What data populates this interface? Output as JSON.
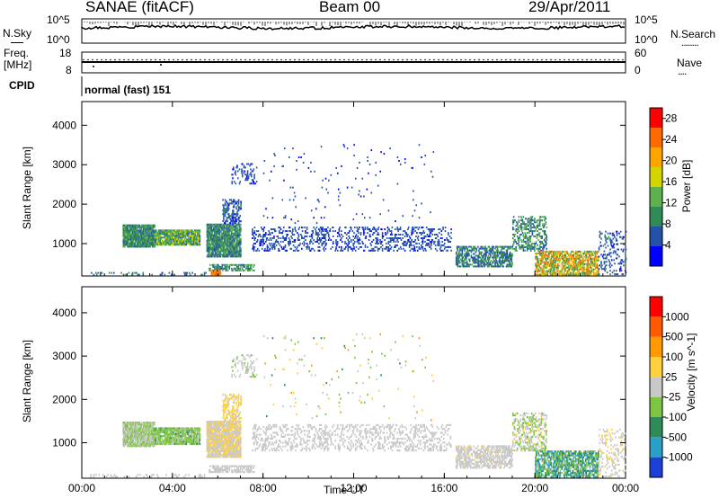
{
  "header": {
    "station": "SANAE (fitACF)",
    "beam": "Beam 00",
    "date": "29/Apr/2011"
  },
  "top_panels": {
    "nsky_label": "N.Sky",
    "nsearch_label": "N.Search",
    "nsearch_marker": "........",
    "freq_label_1": "Freq.",
    "freq_label_2": "[MHz]",
    "freq_ticks": [
      "18",
      "8"
    ],
    "nave_label": "Nave",
    "nave_marker": "....",
    "nave_ticks": [
      "60",
      "0"
    ],
    "noise_ticks_left": [
      "10^5",
      "10^0"
    ],
    "noise_ticks_right": [
      "10^5",
      "10^0"
    ],
    "cpid_label": "CPID",
    "cpid_text": "normal (fast) 151"
  },
  "colors": {
    "power_scale": [
      "#0000ff",
      "#2352a8",
      "#2e8b57",
      "#5fb04e",
      "#d4d400",
      "#ffa500",
      "#ff6a00",
      "#ff0000"
    ],
    "velocity_scale": [
      "#1c3fd6",
      "#2aa0c8",
      "#2e8b57",
      "#7dc542",
      "#c8c8c8",
      "#ffd040",
      "#ff9a00",
      "#ff5a00",
      "#ff0000"
    ]
  },
  "chart_data": [
    {
      "type": "heatmap",
      "panel": "power",
      "ylabel": "Slant Range [km]",
      "xlabel": "Time UT",
      "xlim_hours": [
        0,
        24
      ],
      "ylim_km": [
        180,
        4600
      ],
      "x_tick_labels": [
        "00:00",
        "04:00",
        "08:00",
        "12:00",
        "16:00",
        "20:00",
        "00:00"
      ],
      "y_tick_labels": [
        "1000",
        "2000",
        "3000",
        "4000"
      ],
      "colorbar": {
        "label": "Power [dB]",
        "ticks": [
          "4",
          "8",
          "12",
          "16",
          "20",
          "24",
          "28"
        ],
        "range": [
          0,
          30
        ]
      },
      "regions": [
        {
          "t": [
            1.8,
            3.2
          ],
          "r": [
            900,
            1450
          ],
          "density": 0.85,
          "val": [
            6,
            13
          ]
        },
        {
          "t": [
            3.2,
            5.2
          ],
          "r": [
            950,
            1350
          ],
          "density": 0.8,
          "val": [
            6,
            18
          ]
        },
        {
          "t": [
            5.5,
            7.0
          ],
          "r": [
            650,
            1500
          ],
          "density": 0.8,
          "val": [
            5,
            14
          ]
        },
        {
          "t": [
            6.2,
            7.0
          ],
          "r": [
            1500,
            2100
          ],
          "density": 0.4,
          "val": [
            3,
            8
          ]
        },
        {
          "t": [
            6.6,
            7.7
          ],
          "r": [
            2500,
            3000
          ],
          "density": 0.15,
          "val": [
            3,
            7
          ]
        },
        {
          "t": [
            5.6,
            7.6
          ],
          "r": [
            300,
            450
          ],
          "density": 0.55,
          "val": [
            6,
            14
          ]
        },
        {
          "t": [
            5.7,
            6.1
          ],
          "r": [
            190,
            300
          ],
          "density": 0.9,
          "val": [
            18,
            28
          ]
        },
        {
          "t": [
            0.3,
            5.5
          ],
          "r": [
            190,
            260
          ],
          "density": 0.18,
          "val": [
            4,
            10
          ]
        },
        {
          "t": [
            7.5,
            16.3
          ],
          "r": [
            800,
            1400
          ],
          "density": 0.22,
          "val": [
            3,
            7
          ]
        },
        {
          "t": [
            8.0,
            15.5
          ],
          "r": [
            1500,
            3500
          ],
          "density": 0.012,
          "val": [
            3,
            6
          ]
        },
        {
          "t": [
            16.5,
            19.0
          ],
          "r": [
            400,
            900
          ],
          "density": 0.5,
          "val": [
            4,
            12
          ]
        },
        {
          "t": [
            19.0,
            20.5
          ],
          "r": [
            800,
            1700
          ],
          "density": 0.35,
          "val": [
            5,
            14
          ]
        },
        {
          "t": [
            20.0,
            22.8
          ],
          "r": [
            190,
            800
          ],
          "density": 0.6,
          "val": [
            8,
            26
          ]
        },
        {
          "t": [
            22.8,
            24.0
          ],
          "r": [
            200,
            1300
          ],
          "density": 0.15,
          "val": [
            3,
            8
          ]
        }
      ]
    },
    {
      "type": "heatmap",
      "panel": "velocity",
      "ylabel": "Slant Range [km]",
      "xlabel": "Time UT",
      "xlim_hours": [
        0,
        24
      ],
      "ylim_km": [
        180,
        4600
      ],
      "x_tick_labels": [
        "00:00",
        "04:00",
        "08:00",
        "12:00",
        "16:00",
        "20:00",
        "00:00"
      ],
      "y_tick_labels": [
        "1000",
        "2000",
        "3000",
        "4000"
      ],
      "colorbar": {
        "label": "Velocity [m s^-1]",
        "ticks": [
          "1000",
          "500",
          "100",
          "25",
          "-25",
          "-100",
          "-500",
          "-1000"
        ],
        "range": [
          -1200,
          1200
        ]
      },
      "regions": [
        {
          "t": [
            1.8,
            3.2
          ],
          "r": [
            900,
            1450
          ],
          "density": 0.85,
          "val": [
            -300,
            50
          ]
        },
        {
          "t": [
            3.2,
            5.2
          ],
          "r": [
            950,
            1350
          ],
          "density": 0.8,
          "val": [
            -450,
            -20
          ]
        },
        {
          "t": [
            5.5,
            7.0
          ],
          "r": [
            650,
            1500
          ],
          "density": 0.8,
          "val": [
            -100,
            300
          ]
        },
        {
          "t": [
            6.2,
            7.0
          ],
          "r": [
            1500,
            2100
          ],
          "density": 0.4,
          "val": [
            0,
            400
          ]
        },
        {
          "t": [
            6.6,
            7.7
          ],
          "r": [
            2500,
            3000
          ],
          "density": 0.15,
          "val": [
            -200,
            100
          ]
        },
        {
          "t": [
            5.6,
            7.6
          ],
          "r": [
            300,
            450
          ],
          "density": 0.55,
          "val": [
            -80,
            60
          ]
        },
        {
          "t": [
            0.3,
            5.5
          ],
          "r": [
            190,
            260
          ],
          "density": 0.18,
          "val": [
            -50,
            50
          ]
        },
        {
          "t": [
            7.5,
            16.3
          ],
          "r": [
            800,
            1400
          ],
          "density": 0.22,
          "val": [
            -30,
            30
          ]
        },
        {
          "t": [
            8.0,
            15.5
          ],
          "r": [
            1500,
            3500
          ],
          "density": 0.012,
          "val": [
            -500,
            500
          ]
        },
        {
          "t": [
            16.5,
            19.0
          ],
          "r": [
            400,
            900
          ],
          "density": 0.5,
          "val": [
            -100,
            150
          ]
        },
        {
          "t": [
            19.0,
            20.5
          ],
          "r": [
            800,
            1700
          ],
          "density": 0.35,
          "val": [
            -300,
            200
          ]
        },
        {
          "t": [
            20.0,
            22.8
          ],
          "r": [
            190,
            800
          ],
          "density": 0.6,
          "val": [
            -900,
            -50
          ]
        },
        {
          "t": [
            22.8,
            24.0
          ],
          "r": [
            200,
            1300
          ],
          "density": 0.15,
          "val": [
            -50,
            200
          ]
        }
      ]
    }
  ]
}
